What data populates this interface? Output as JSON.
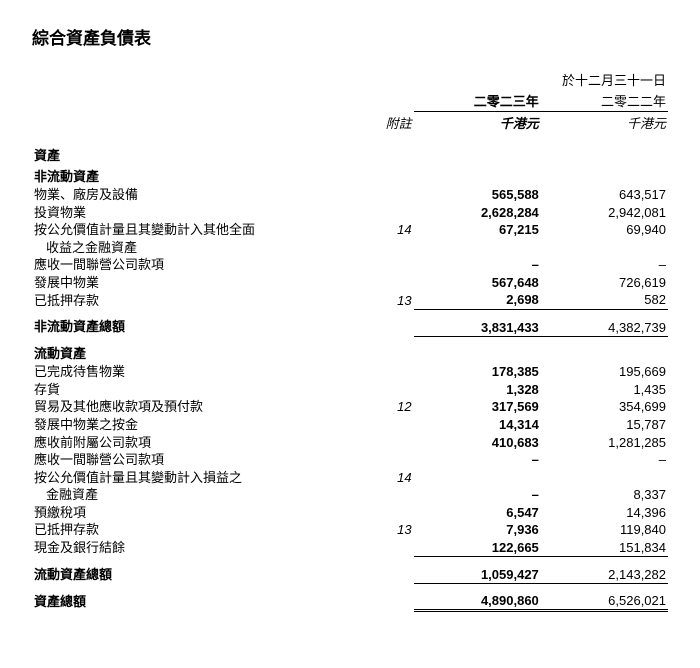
{
  "title": "綜合資產負債表",
  "header": {
    "as_of": "於十二月三十一日",
    "col_note": "附註",
    "year_cur": "二零二三年",
    "year_prev": "二零二二年",
    "unit": "千港元"
  },
  "sections": {
    "assets": "資產",
    "nca": "非流動資產",
    "nca_total": "非流動資產總額",
    "ca": "流動資產",
    "ca_total": "流動資產總額",
    "total_assets": "資產總額"
  },
  "rows": {
    "ppe": {
      "label": "物業、廠房及設備",
      "note": "",
      "cur": "565,588",
      "prev": "643,517"
    },
    "invprop": {
      "label": "投資物業",
      "note": "",
      "cur": "2,628,284",
      "prev": "2,942,081"
    },
    "fvoci_a": {
      "label": "按公允價值計量且其變動計入其他全面",
      "note": "14",
      "cur": "67,215",
      "prev": "69,940"
    },
    "fvoci_b": {
      "label": "收益之金融資產"
    },
    "assoc_rec": {
      "label": "應收一間聯營公司款項",
      "note": "",
      "cur": "–",
      "prev": "–"
    },
    "pud": {
      "label": "發展中物業",
      "note": "",
      "cur": "567,648",
      "prev": "726,619"
    },
    "pledged1": {
      "label": "已抵押存款",
      "note": "13",
      "cur": "2,698",
      "prev": "582"
    },
    "nca_total": {
      "cur": "3,831,433",
      "prev": "4,382,739"
    },
    "cfs": {
      "label": "已完成待售物業",
      "note": "",
      "cur": "178,385",
      "prev": "195,669"
    },
    "inv": {
      "label": "存貨",
      "note": "",
      "cur": "1,328",
      "prev": "1,435"
    },
    "trade": {
      "label": "貿易及其他應收款項及預付款",
      "note": "12",
      "cur": "317,569",
      "prev": "354,699"
    },
    "puddep": {
      "label": "發展中物業之按金",
      "note": "",
      "cur": "14,314",
      "prev": "15,787"
    },
    "subs_rec": {
      "label": "應收前附屬公司款項",
      "note": "",
      "cur": "410,683",
      "prev": "1,281,285"
    },
    "assoc_rec2": {
      "label": "應收一間聯營公司款項",
      "note": "",
      "cur": "–",
      "prev": "–"
    },
    "fvpl_a": {
      "label": "按公允價值計量且其變動計入損益之",
      "note": "14",
      "cur": "",
      "prev": ""
    },
    "fvpl_b": {
      "label": "金融資產",
      "cur": "–",
      "prev": "8,337"
    },
    "taxrec": {
      "label": "預繳稅項",
      "note": "",
      "cur": "6,547",
      "prev": "14,396"
    },
    "pledged2": {
      "label": "已抵押存款",
      "note": "13",
      "cur": "7,936",
      "prev": "119,840"
    },
    "cash": {
      "label": "現金及銀行結餘",
      "note": "",
      "cur": "122,665",
      "prev": "151,834"
    },
    "ca_total": {
      "cur": "1,059,427",
      "prev": "2,143,282"
    },
    "grand": {
      "cur": "4,890,860",
      "prev": "6,526,021"
    }
  }
}
